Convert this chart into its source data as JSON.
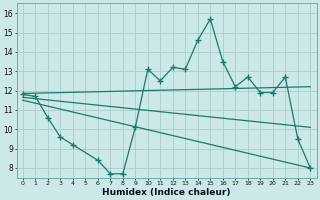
{
  "xlabel": "Humidex (Indice chaleur)",
  "zigzag_x": [
    0,
    1,
    2,
    3,
    4,
    6,
    7,
    8,
    9,
    10,
    11,
    12,
    13,
    14,
    15,
    16,
    17,
    18,
    19,
    20,
    21,
    22,
    23
  ],
  "zigzag_y": [
    11.8,
    11.7,
    10.6,
    9.6,
    9.2,
    8.4,
    7.7,
    7.7,
    10.1,
    13.1,
    12.5,
    13.2,
    13.1,
    14.6,
    15.7,
    13.5,
    12.2,
    12.7,
    11.9,
    11.9,
    12.7,
    9.5,
    8.0
  ],
  "upper_line_x": [
    0,
    23
  ],
  "upper_line_y": [
    11.85,
    12.2
  ],
  "lower_line_x": [
    0,
    23
  ],
  "lower_line_y": [
    11.5,
    8.0
  ],
  "mid_line_x": [
    0,
    23
  ],
  "mid_line_y": [
    11.65,
    10.1
  ],
  "ylim": [
    7.5,
    16.5
  ],
  "xlim": [
    -0.5,
    23.5
  ],
  "bg_color": "#cce8e8",
  "grid_color": "#aacccc",
  "line_color": "#1a7a6e"
}
